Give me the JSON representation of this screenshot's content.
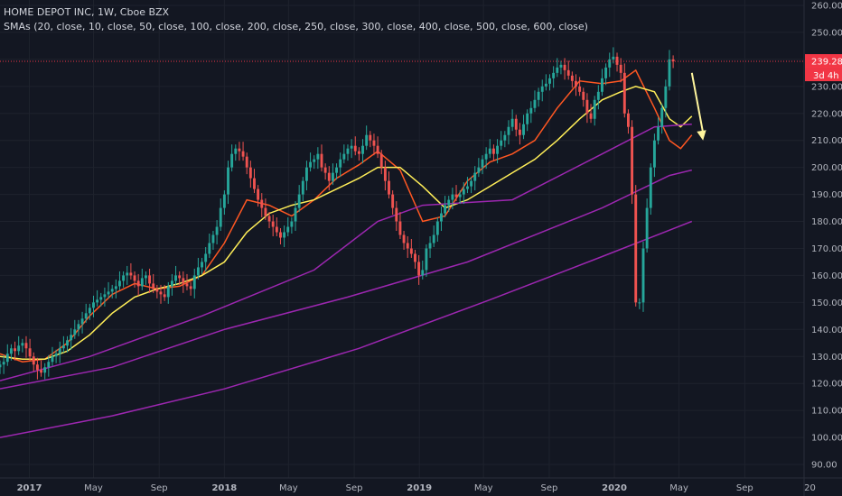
{
  "legend": {
    "title": "HOME DEPOT INC, 1W, Cboe BZX",
    "indicators": "SMAs (20, close, 10, close, 50, close, 100, close, 200, close, 250, close, 300, close, 400, close, 500, close, 600, close)"
  },
  "price_badge": {
    "price": "239.28",
    "countdown": "3d 4h",
    "color": "#f23645"
  },
  "colors": {
    "up": "#26a69a",
    "down": "#ef5350",
    "sma10": "#ff5722",
    "sma20": "#ffee58",
    "sma50": "#9c27b0",
    "sma100": "#9c27b0",
    "sma200": "#9c27b0",
    "arrow": "#fff59d",
    "background": "#131722"
  },
  "chart_data": {
    "type": "candlestick",
    "y_axis": {
      "min": 85,
      "max": 262,
      "ticks": [
        90,
        100,
        110,
        120,
        130,
        140,
        150,
        160,
        170,
        180,
        190,
        200,
        210,
        220,
        230,
        240,
        250,
        260
      ],
      "tick_labels": [
        "90.00",
        "100.00",
        "110.00",
        "120.00",
        "130.00",
        "140.00",
        "150.00",
        "160.00",
        "170.00",
        "180.00",
        "190.00",
        "200.00",
        "210.00",
        "220.00",
        "230.00",
        "240.00",
        "250.00",
        "260.00"
      ]
    },
    "x_axis": {
      "start": "2016-11-07",
      "end": "2020-12-21",
      "ticks": [
        {
          "date": "2017-01-01",
          "label": "2017"
        },
        {
          "date": "2017-05-01",
          "label": "May"
        },
        {
          "date": "2017-09-01",
          "label": "Sep"
        },
        {
          "date": "2018-01-01",
          "label": "2018"
        },
        {
          "date": "2018-05-01",
          "label": "May"
        },
        {
          "date": "2018-09-01",
          "label": "Sep"
        },
        {
          "date": "2019-01-01",
          "label": "2019"
        },
        {
          "date": "2019-05-01",
          "label": "May"
        },
        {
          "date": "2019-09-01",
          "label": "Sep"
        },
        {
          "date": "2020-01-01",
          "label": "2020"
        },
        {
          "date": "2020-05-01",
          "label": "May"
        },
        {
          "date": "2020-09-01",
          "label": "Sep"
        },
        {
          "date": "2021-01-01",
          "label": "20"
        }
      ]
    },
    "first_bar": "2016-11-07",
    "close": [
      127,
      128,
      131,
      133,
      132,
      134,
      135,
      133,
      130,
      127,
      125,
      124,
      126,
      128,
      130,
      131,
      133,
      134,
      136,
      138,
      140,
      142,
      144,
      146,
      148,
      150,
      151,
      152,
      153,
      154,
      155,
      156,
      158,
      160,
      161,
      160,
      158,
      156,
      159,
      160,
      157,
      155,
      154,
      153,
      152,
      156,
      158,
      160,
      159,
      157,
      156,
      155,
      160,
      163,
      165,
      168,
      172,
      175,
      178,
      185,
      190,
      200,
      205,
      207,
      206,
      204,
      200,
      196,
      192,
      188,
      185,
      182,
      180,
      178,
      176,
      174,
      176,
      178,
      180,
      185,
      190,
      195,
      200,
      202,
      203,
      205,
      200,
      198,
      195,
      198,
      200,
      203,
      205,
      207,
      208,
      206,
      205,
      208,
      212,
      210,
      208,
      205,
      200,
      195,
      190,
      185,
      180,
      175,
      172,
      170,
      168,
      165,
      160,
      162,
      170,
      172,
      175,
      180,
      183,
      186,
      188,
      190,
      189,
      190,
      192,
      193,
      195,
      198,
      200,
      203,
      205,
      207,
      205,
      208,
      210,
      212,
      215,
      218,
      214,
      212,
      216,
      220,
      222,
      225,
      228,
      230,
      231,
      233,
      235,
      237,
      238,
      236,
      234,
      232,
      230,
      228,
      225,
      220,
      218,
      225,
      228,
      233,
      237,
      240,
      241,
      238,
      235,
      220,
      215,
      190,
      150,
      150,
      170,
      185,
      200,
      210,
      215,
      222,
      230,
      240,
      239.28
    ],
    "sma": [
      {
        "period": 10,
        "color": "#ff5722",
        "points": [
          [
            "2016-11-07",
            131
          ],
          [
            "2016-12-19",
            128
          ],
          [
            "2017-01-30",
            129
          ],
          [
            "2017-03-13",
            135
          ],
          [
            "2017-04-24",
            145
          ],
          [
            "2017-06-05",
            153
          ],
          [
            "2017-07-17",
            157
          ],
          [
            "2017-08-28",
            155
          ],
          [
            "2017-10-09",
            156
          ],
          [
            "2017-11-20",
            160
          ],
          [
            "2018-01-01",
            172
          ],
          [
            "2018-02-12",
            188
          ],
          [
            "2018-03-26",
            186
          ],
          [
            "2018-05-07",
            182
          ],
          [
            "2018-06-18",
            188
          ],
          [
            "2018-07-30",
            196
          ],
          [
            "2018-09-10",
            201
          ],
          [
            "2018-10-15",
            206
          ],
          [
            "2018-11-26",
            199
          ],
          [
            "2019-01-07",
            180
          ],
          [
            "2019-02-18",
            182
          ],
          [
            "2019-04-01",
            195
          ],
          [
            "2019-05-13",
            202
          ],
          [
            "2019-06-24",
            205
          ],
          [
            "2019-08-05",
            210
          ],
          [
            "2019-09-16",
            222
          ],
          [
            "2019-10-28",
            232
          ],
          [
            "2019-12-09",
            231
          ],
          [
            "2020-01-13",
            232
          ],
          [
            "2020-02-10",
            236
          ],
          [
            "2020-03-16",
            222
          ],
          [
            "2020-04-13",
            210
          ],
          [
            "2020-05-04",
            207
          ],
          [
            "2020-05-25",
            212
          ]
        ]
      },
      {
        "period": 20,
        "color": "#ffee58",
        "points": [
          [
            "2016-11-07",
            130
          ],
          [
            "2016-12-19",
            129
          ],
          [
            "2017-01-30",
            129
          ],
          [
            "2017-03-13",
            132
          ],
          [
            "2017-04-24",
            138
          ],
          [
            "2017-06-05",
            146
          ],
          [
            "2017-07-17",
            152
          ],
          [
            "2017-08-28",
            155
          ],
          [
            "2017-10-09",
            157
          ],
          [
            "2017-11-20",
            160
          ],
          [
            "2018-01-01",
            165
          ],
          [
            "2018-02-12",
            176
          ],
          [
            "2018-03-26",
            183
          ],
          [
            "2018-05-07",
            186
          ],
          [
            "2018-06-18",
            188
          ],
          [
            "2018-07-30",
            192
          ],
          [
            "2018-09-10",
            196
          ],
          [
            "2018-10-15",
            200
          ],
          [
            "2018-11-26",
            200
          ],
          [
            "2019-01-07",
            193
          ],
          [
            "2019-02-18",
            185
          ],
          [
            "2019-04-01",
            188
          ],
          [
            "2019-05-13",
            193
          ],
          [
            "2019-06-24",
            198
          ],
          [
            "2019-08-05",
            203
          ],
          [
            "2019-09-16",
            210
          ],
          [
            "2019-10-28",
            218
          ],
          [
            "2019-12-09",
            225
          ],
          [
            "2020-01-13",
            228
          ],
          [
            "2020-02-10",
            230
          ],
          [
            "2020-03-16",
            228
          ],
          [
            "2020-04-13",
            218
          ],
          [
            "2020-05-04",
            215
          ],
          [
            "2020-05-25",
            219
          ]
        ]
      },
      {
        "period": 50,
        "color": "#9c27b0",
        "points": [
          [
            "2016-11-07",
            121
          ],
          [
            "2017-04-24",
            130
          ],
          [
            "2017-11-20",
            145
          ],
          [
            "2018-06-18",
            162
          ],
          [
            "2018-10-15",
            180
          ],
          [
            "2019-01-07",
            186
          ],
          [
            "2019-06-24",
            188
          ],
          [
            "2019-12-09",
            205
          ],
          [
            "2020-03-16",
            215
          ],
          [
            "2020-05-25",
            216
          ]
        ]
      },
      {
        "period": 100,
        "color": "#9c27b0",
        "points": [
          [
            "2016-11-07",
            118
          ],
          [
            "2017-06-05",
            126
          ],
          [
            "2018-01-01",
            140
          ],
          [
            "2018-08-20",
            152
          ],
          [
            "2019-04-01",
            165
          ],
          [
            "2019-12-09",
            185
          ],
          [
            "2020-04-13",
            197
          ],
          [
            "2020-05-25",
            199
          ]
        ]
      },
      {
        "period": 200,
        "color": "#9c27b0",
        "points": [
          [
            "2016-11-07",
            100
          ],
          [
            "2017-06-05",
            108
          ],
          [
            "2018-01-01",
            118
          ],
          [
            "2018-09-10",
            133
          ],
          [
            "2019-05-13",
            151
          ],
          [
            "2019-12-09",
            167
          ],
          [
            "2020-05-25",
            180
          ]
        ]
      }
    ],
    "annotations": [
      {
        "type": "arrow",
        "from": [
          "2020-05-25",
          235
        ],
        "to": [
          "2020-06-15",
          210
        ],
        "color": "#fff59d"
      }
    ]
  }
}
